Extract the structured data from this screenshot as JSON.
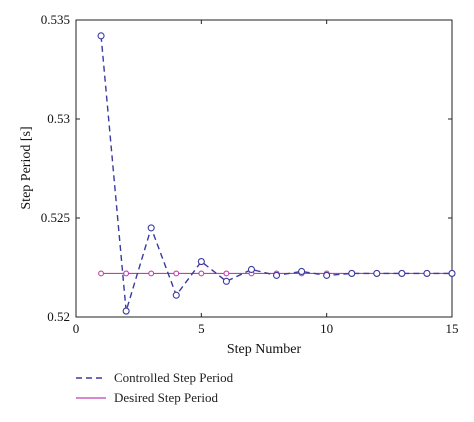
{
  "chart_data": {
    "type": "line",
    "xlabel": "Step Number",
    "ylabel": "Step Period [s]",
    "xlim": [
      0,
      15
    ],
    "ylim": [
      0.52,
      0.535
    ],
    "x_ticks": [
      0,
      5,
      10,
      15
    ],
    "x_tick_labels": [
      "0",
      "5",
      "10",
      "15"
    ],
    "y_ticks": [
      0.52,
      0.525,
      0.53,
      0.535
    ],
    "y_tick_labels": [
      "0.52",
      "0.525",
      "0.53",
      "0.535"
    ],
    "grid": false,
    "legend_position": "bottom-left, below plot",
    "x": [
      1,
      2,
      3,
      4,
      5,
      6,
      7,
      8,
      9,
      10,
      11,
      12,
      13,
      14,
      15
    ],
    "series": [
      {
        "name": "Controlled Step Period",
        "color": "#3a3aa0",
        "line_style": "dashed",
        "marker": "circle",
        "values": [
          0.5342,
          0.5203,
          0.5245,
          0.5211,
          0.5228,
          0.5218,
          0.5224,
          0.5221,
          0.5223,
          0.5221,
          0.5222,
          0.5222,
          0.5222,
          0.5222,
          0.5222
        ]
      },
      {
        "name": "Desired Step Period",
        "color": "#c040b0",
        "line_style": "solid",
        "marker": "circle",
        "values": [
          0.5222,
          0.5222,
          0.5222,
          0.5222,
          0.5222,
          0.5222,
          0.5222,
          0.5222,
          0.5222,
          0.5222,
          0.5222,
          0.5222,
          0.5222,
          0.5222,
          0.5222
        ]
      }
    ]
  }
}
